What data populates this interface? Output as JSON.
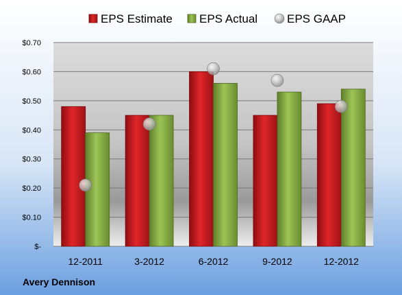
{
  "chart_data": {
    "type": "bar",
    "company": "Avery Dennison",
    "categories": [
      "12-2011",
      "3-2012",
      "6-2012",
      "9-2012",
      "12-2012"
    ],
    "series": [
      {
        "name": "EPS Estimate",
        "kind": "bar",
        "color": "#c81e22",
        "values": [
          0.48,
          0.45,
          0.6,
          0.45,
          0.49
        ]
      },
      {
        "name": "EPS Actual",
        "kind": "bar",
        "color": "#8cb448",
        "values": [
          0.39,
          0.45,
          0.56,
          0.53,
          0.54
        ]
      },
      {
        "name": "EPS GAAP",
        "kind": "marker",
        "color": "#b8b8b8",
        "values": [
          0.21,
          0.42,
          0.61,
          0.57,
          0.48
        ]
      }
    ],
    "y_ticks": [
      {
        "value": 0,
        "label": "$-"
      },
      {
        "value": 0.1,
        "label": "$0.10"
      },
      {
        "value": 0.2,
        "label": "$0.20"
      },
      {
        "value": 0.3,
        "label": "$0.30"
      },
      {
        "value": 0.4,
        "label": "$0.40"
      },
      {
        "value": 0.5,
        "label": "$0.50"
      },
      {
        "value": 0.6,
        "label": "$0.60"
      },
      {
        "value": 0.7,
        "label": "$0.70"
      }
    ],
    "ylim": [
      0,
      0.7
    ],
    "grid": true,
    "legend_position": "top"
  }
}
